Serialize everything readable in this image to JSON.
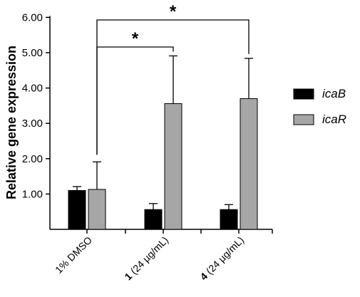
{
  "chart_data": {
    "type": "bar",
    "ylabel": "Relative gene expression",
    "xlabel": "",
    "ylim": [
      0,
      6
    ],
    "yticks": [
      "6.00",
      "5.00",
      "4.00",
      "3.00",
      "2.00",
      "1.00"
    ],
    "yticks_values": [
      6,
      5,
      4,
      3,
      2,
      1
    ],
    "categories": [
      {
        "bold": "",
        "rest": "1% DMSO"
      },
      {
        "bold": "1",
        "rest": " (24 µg/mL)"
      },
      {
        "bold": "4",
        "rest": " (24 µg/mL)"
      }
    ],
    "series": [
      {
        "name": "icaB",
        "color": "#000000",
        "values": [
          1.1,
          0.56,
          0.56
        ],
        "errors": [
          0.11,
          0.17,
          0.14
        ]
      },
      {
        "name": "icaR",
        "color": "#a6a6a6",
        "values": [
          1.13,
          3.56,
          3.7
        ],
        "errors": [
          0.78,
          1.35,
          1.14
        ]
      }
    ],
    "legend_position": "right",
    "annotations": [
      {
        "text": "*",
        "from_category": 0,
        "to_category": 1,
        "level": 5.2
      },
      {
        "text": "*",
        "from_category": 0,
        "to_category": 2,
        "level": 5.98
      }
    ]
  }
}
